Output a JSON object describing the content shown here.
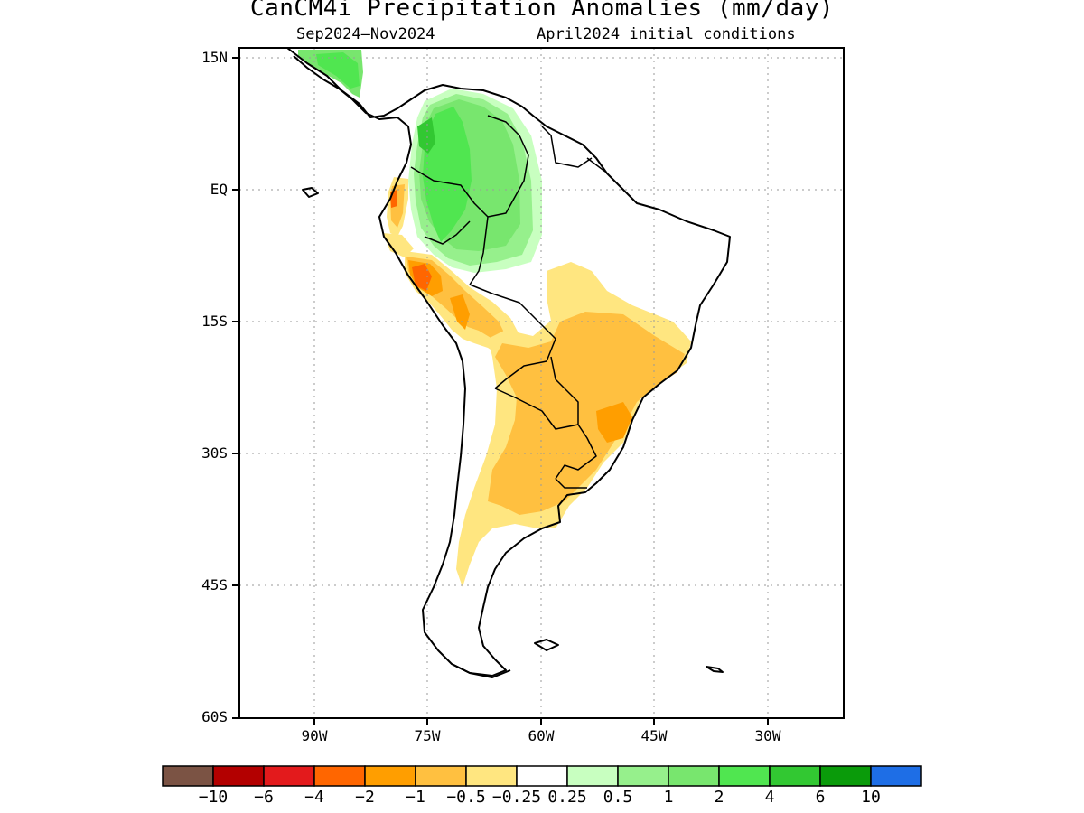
{
  "title": "CanCM4i Precipitation Anomalies (mm/day)",
  "subtitle_left": "Sep2024–Nov2024",
  "subtitle_right": "April2024 initial conditions",
  "lat_labels": [
    "15N",
    "EQ",
    "15S",
    "30S",
    "45S",
    "60S"
  ],
  "lon_labels": [
    "90W",
    "75W",
    "60W",
    "45W",
    "30W"
  ],
  "colorbar": {
    "colors": [
      "#7b5344",
      "#b30000",
      "#e31a1c",
      "#ff6600",
      "#ff9e00",
      "#ffc040",
      "#ffe680",
      "#ffffff",
      "#c8ffc0",
      "#96f08c",
      "#78e66e",
      "#50e650",
      "#32c832",
      "#0a9b0a",
      "#1e6ee6"
    ],
    "labels": [
      "−10",
      "−6",
      "−4",
      "−2",
      "−1",
      "−0.5",
      "−0.25",
      "0.25",
      "0.5",
      "1",
      "2",
      "4",
      "6",
      "10"
    ]
  },
  "colors": {
    "gridline": "#9a9a9a",
    "coast": "#000000",
    "wet_light": "#c8ffc0",
    "wet_med": "#96f08c",
    "wet": "#78e66e",
    "wet_strong": "#50e650",
    "wet_stronger": "#32c832",
    "dry_light": "#ffe680",
    "dry_med": "#ffc040",
    "dry": "#ff9e00",
    "dry_strong": "#ff6600"
  }
}
